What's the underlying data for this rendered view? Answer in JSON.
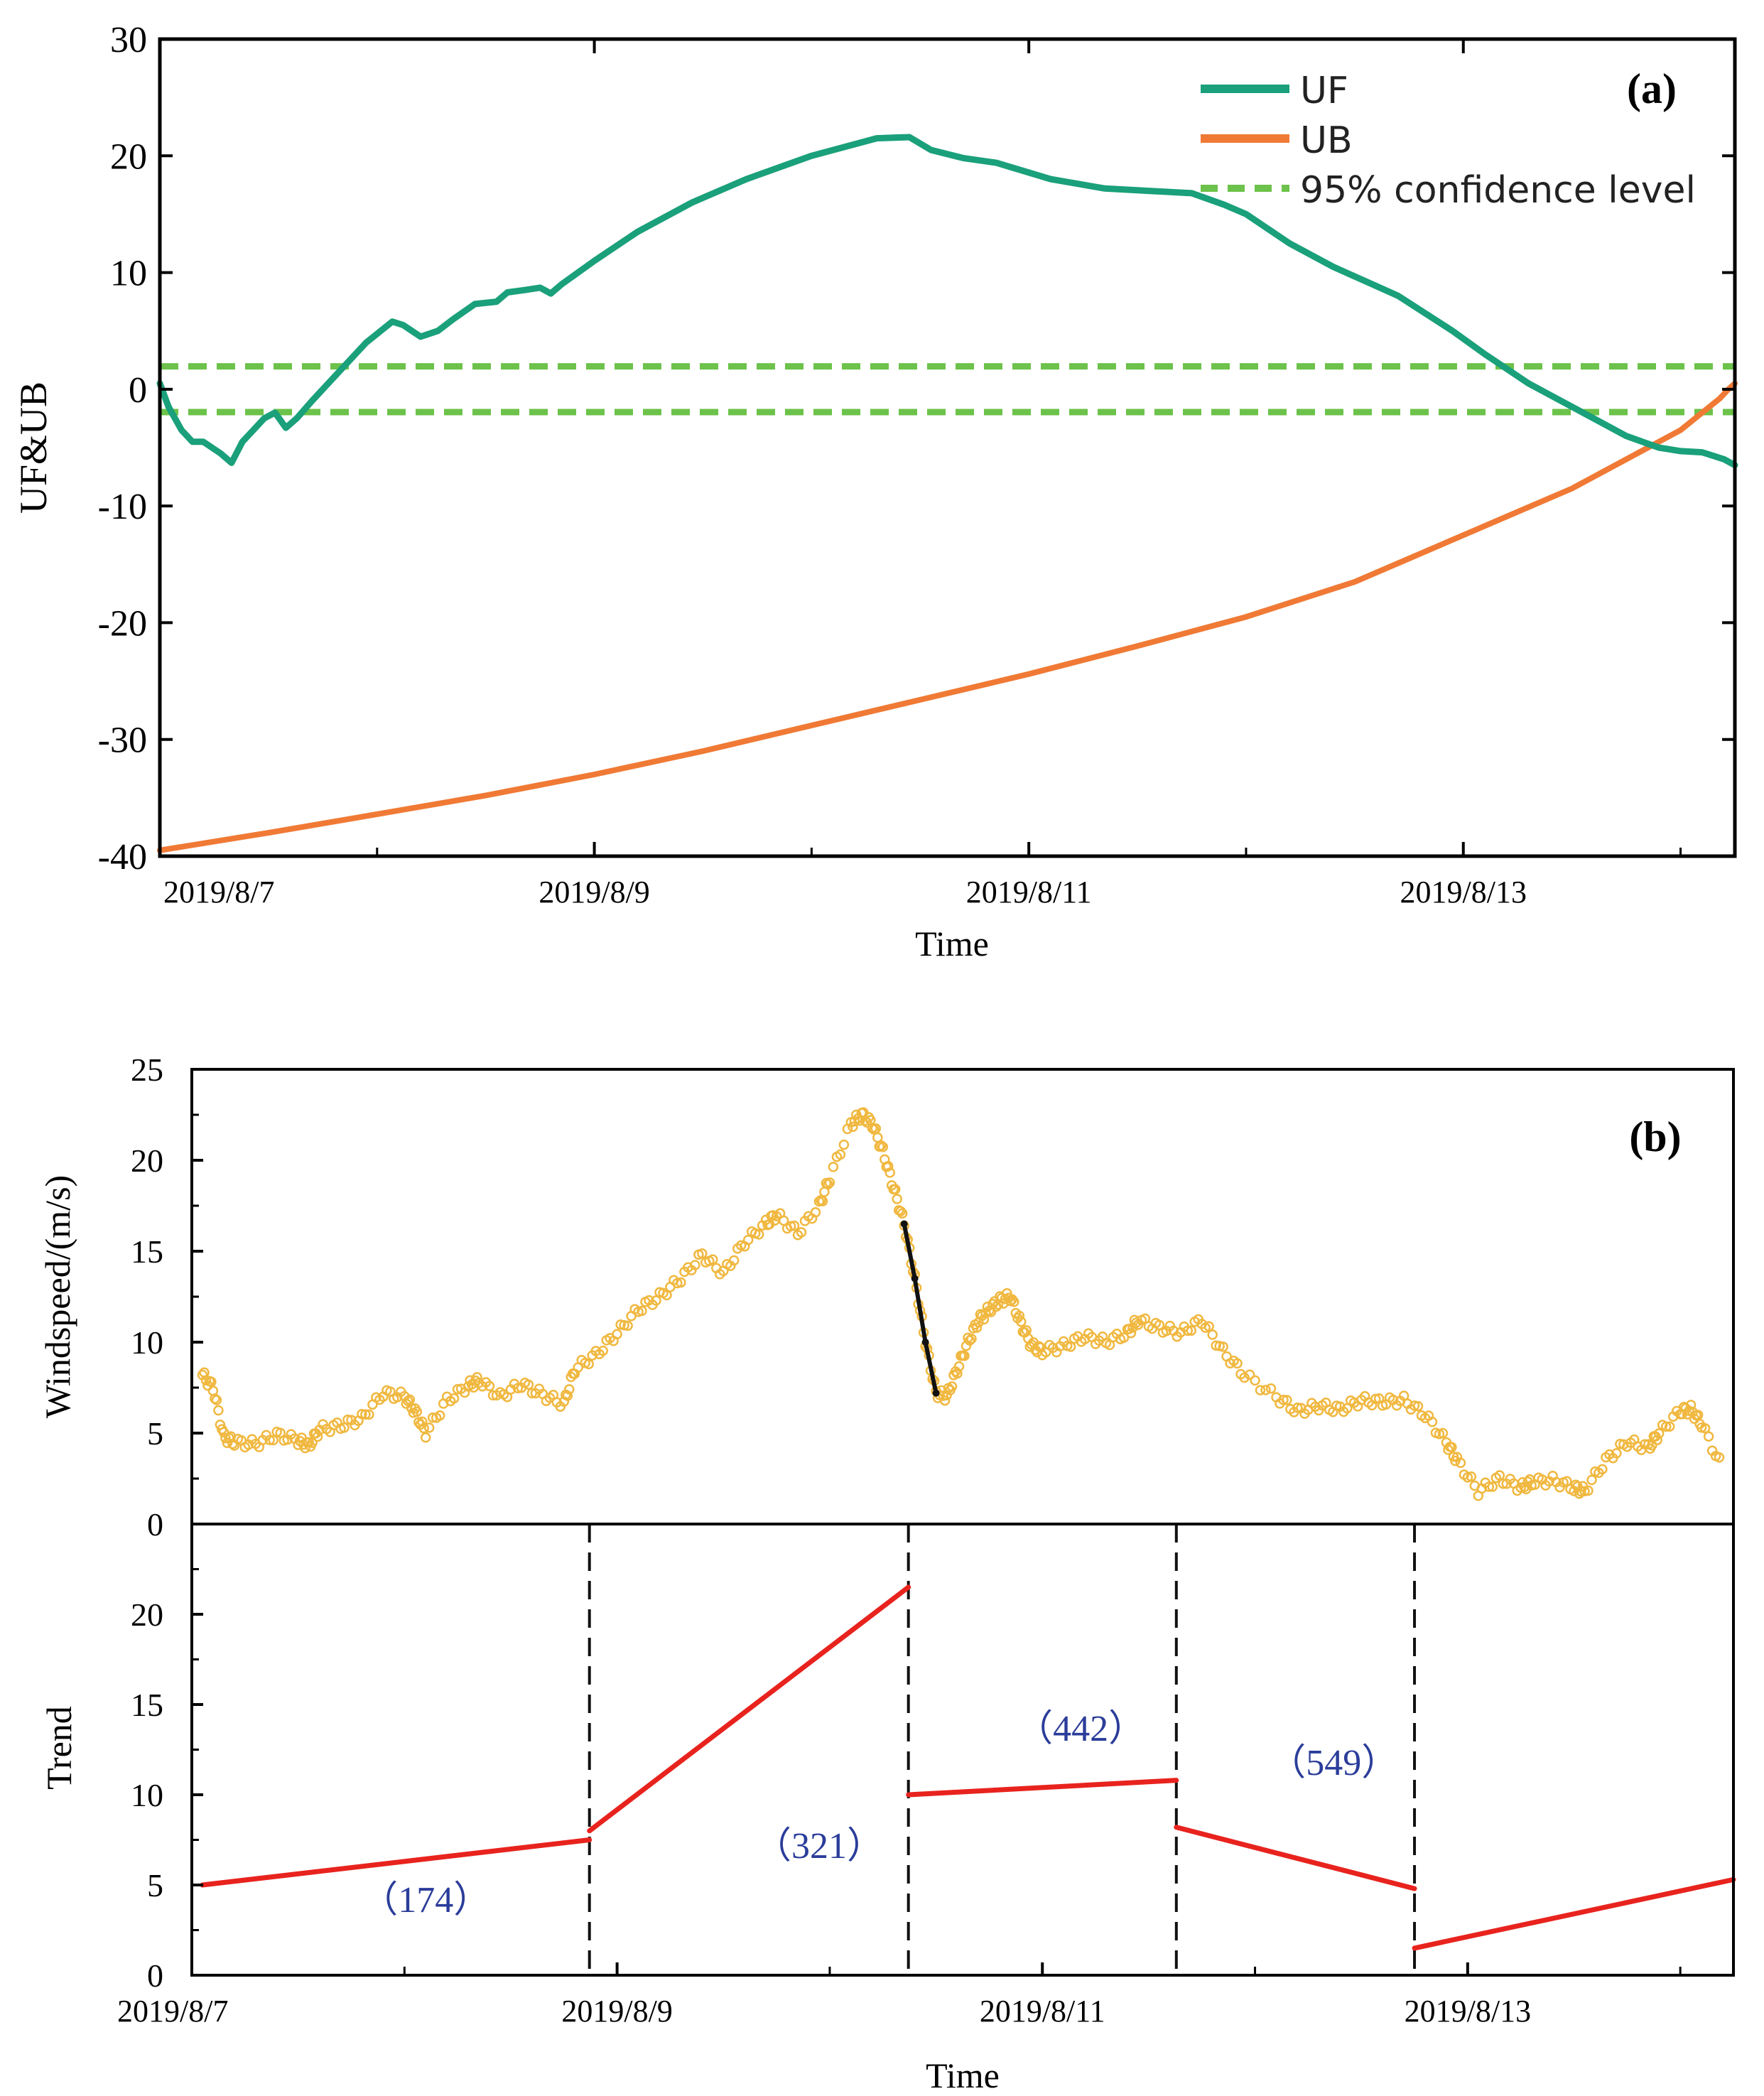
{
  "chart_data": [
    {
      "id": "a",
      "type": "line",
      "panel_label": "(a)",
      "ylabel": "UF&UB",
      "xlabel": "Time",
      "ylim": [
        -40,
        30
      ],
      "yticks": [
        30,
        20,
        10,
        0,
        -10,
        -20,
        -30,
        -40
      ],
      "xlim": [
        0,
        7.25
      ],
      "xtick_positions": [
        0,
        2,
        4,
        6
      ],
      "xtick_labels": [
        "2019/8/7",
        "2019/8/9",
        "2019/8/11",
        "2019/8/13"
      ],
      "legend_position": "top-right",
      "series": [
        {
          "name": "UF",
          "color": "#1aa07a",
          "x": [
            0,
            0.04,
            0.1,
            0.15,
            0.2,
            0.28,
            0.33,
            0.38,
            0.43,
            0.48,
            0.53,
            0.58,
            0.63,
            0.7,
            0.8,
            0.95,
            1.07,
            1.12,
            1.2,
            1.28,
            1.35,
            1.45,
            1.55,
            1.6,
            1.68,
            1.75,
            1.8,
            1.85,
            2.0,
            2.2,
            2.45,
            2.7,
            3.0,
            3.3,
            3.45,
            3.55,
            3.7,
            3.85,
            4.1,
            4.35,
            4.55,
            4.75,
            4.9,
            5.0,
            5.2,
            5.4,
            5.7,
            5.95,
            6.1,
            6.3,
            6.45,
            6.6,
            6.75,
            6.9,
            7.0,
            7.1,
            7.2,
            7.25
          ],
          "y": [
            0.5,
            -1.5,
            -3.5,
            -4.5,
            -4.5,
            -5.5,
            -6.3,
            -4.5,
            -3.5,
            -2.5,
            -2.0,
            -3.3,
            -2.5,
            -1.0,
            1.0,
            4.0,
            5.8,
            5.5,
            4.5,
            5.0,
            6.0,
            7.3,
            7.5,
            8.3,
            8.5,
            8.7,
            8.2,
            9.0,
            11.0,
            13.5,
            16.0,
            18.0,
            20.0,
            21.5,
            21.6,
            20.5,
            19.8,
            19.4,
            18.0,
            17.2,
            17.0,
            16.8,
            15.8,
            15.0,
            12.5,
            10.5,
            8.0,
            5.0,
            3.0,
            0.5,
            -1.0,
            -2.5,
            -4.0,
            -5.0,
            -5.3,
            -5.4,
            -6.0,
            -6.5
          ]
        },
        {
          "name": "UB",
          "color": "#f07a35",
          "x": [
            0,
            0.5,
            1.0,
            1.5,
            2.0,
            2.5,
            3.0,
            3.5,
            4.0,
            4.5,
            5.0,
            5.5,
            6.0,
            6.5,
            6.8,
            7.0,
            7.1,
            7.18,
            7.22,
            7.25
          ],
          "y": [
            -39.5,
            -38.0,
            -36.4,
            -34.8,
            -33.0,
            -31.0,
            -28.8,
            -26.6,
            -24.4,
            -22.0,
            -19.5,
            -16.5,
            -12.5,
            -8.5,
            -5.5,
            -3.5,
            -2.0,
            -0.8,
            0.0,
            0.5
          ]
        },
        {
          "name": "95% confidence level",
          "color": "#6cc24a",
          "dashed": true,
          "levels": [
            1.96,
            -1.96
          ]
        }
      ]
    },
    {
      "id": "b-top",
      "type": "scatter",
      "panel_label": "(b)",
      "ylabel": "Windspeed/(m/s)",
      "ylim": [
        0,
        25
      ],
      "yticks": [
        25,
        20,
        15,
        10,
        5,
        0
      ],
      "xlim": [
        0,
        7.25
      ],
      "series": [
        {
          "name": "",
          "color": "#f0b840",
          "marker": "open-circle",
          "x": [
            0.05,
            0.1,
            0.15,
            0.2,
            0.3,
            0.4,
            0.5,
            0.55,
            0.6,
            0.7,
            0.8,
            0.9,
            1.0,
            1.05,
            1.1,
            1.2,
            1.3,
            1.35,
            1.45,
            1.55,
            1.65,
            1.75,
            1.8,
            1.9,
            2.0,
            2.1,
            2.2,
            2.3,
            2.4,
            2.5,
            2.6,
            2.7,
            2.75,
            2.85,
            2.95,
            3.0,
            3.1,
            3.15,
            3.2,
            3.25,
            3.3,
            3.35,
            3.4,
            3.45,
            3.5,
            3.55,
            3.6,
            3.65,
            3.7,
            3.75,
            3.8,
            3.85,
            3.9,
            3.95,
            4.0,
            4.1,
            4.2,
            4.3,
            4.4,
            4.45,
            4.55,
            4.65,
            4.75,
            4.85,
            4.95,
            5.1,
            5.2,
            5.3,
            5.4,
            5.5,
            5.6,
            5.7,
            5.8,
            5.9,
            5.95,
            6.05,
            6.15,
            6.25,
            6.3,
            6.4,
            6.5,
            6.55,
            6.65,
            6.75,
            6.85,
            6.9,
            7.0,
            7.05,
            7.1,
            7.2
          ],
          "y": [
            8.2,
            7.5,
            4.8,
            4.5,
            4.4,
            4.9,
            4.6,
            4.3,
            5.2,
            5.4,
            5.8,
            7.2,
            7.0,
            6.2,
            5.0,
            6.8,
            7.6,
            7.9,
            7.0,
            7.7,
            7.1,
            6.6,
            8.5,
            9.3,
            10.5,
            11.8,
            12.5,
            13.5,
            14.8,
            13.8,
            15.5,
            16.5,
            17.0,
            16.0,
            17.5,
            19.0,
            22.0,
            22.5,
            22.0,
            20.5,
            18.5,
            16.5,
            13.5,
            10.0,
            7.2,
            7.0,
            8.5,
            10.0,
            11.2,
            11.8,
            12.3,
            12.5,
            11.0,
            9.8,
            9.5,
            9.8,
            10.3,
            10.0,
            10.5,
            11.2,
            10.8,
            10.5,
            11.2,
            9.5,
            8.2,
            7.0,
            6.2,
            6.5,
            6.3,
            6.8,
            6.7,
            6.8,
            6.0,
            4.5,
            3.5,
            1.8,
            2.5,
            2.0,
            2.3,
            2.4,
            2.0,
            1.8,
            3.5,
            4.5,
            4.2,
            5.0,
            6.2,
            6.3,
            5.5,
            3.0
          ]
        }
      ]
    },
    {
      "id": "b-bottom",
      "type": "line",
      "ylabel": "Trend",
      "xlabel": "Time",
      "ylim": [
        0,
        25
      ],
      "yticks": [
        20,
        15,
        10,
        5,
        0
      ],
      "xlim": [
        0,
        7.25
      ],
      "xtick_positions": [
        0,
        2,
        4,
        6
      ],
      "xtick_labels": [
        "2019/8/7",
        "2019/8/9",
        "2019/8/11",
        "2019/8/13"
      ],
      "change_points_x": [
        1.87,
        3.37,
        4.63,
        5.75
      ],
      "segments": [
        {
          "x": [
            0.05,
            1.87
          ],
          "y": [
            5.0,
            7.5
          ]
        },
        {
          "x": [
            1.87,
            3.37
          ],
          "y": [
            8.0,
            21.5
          ]
        },
        {
          "x": [
            3.37,
            4.63
          ],
          "y": [
            10.0,
            10.8
          ]
        },
        {
          "x": [
            4.63,
            5.75
          ],
          "y": [
            8.2,
            4.8
          ]
        },
        {
          "x": [
            5.75,
            7.25
          ],
          "y": [
            1.5,
            5.3
          ]
        }
      ],
      "segment_color": "#e8231e",
      "annotations": [
        {
          "text": "（174）",
          "x": 1.1,
          "y": 3.5
        },
        {
          "text": "（321）",
          "x": 2.95,
          "y": 6.5
        },
        {
          "text": "（442）",
          "x": 4.18,
          "y": 13.0
        },
        {
          "text": "（549）",
          "x": 5.37,
          "y": 11.1
        }
      ],
      "annotation_color": "#2b3d9a"
    }
  ]
}
